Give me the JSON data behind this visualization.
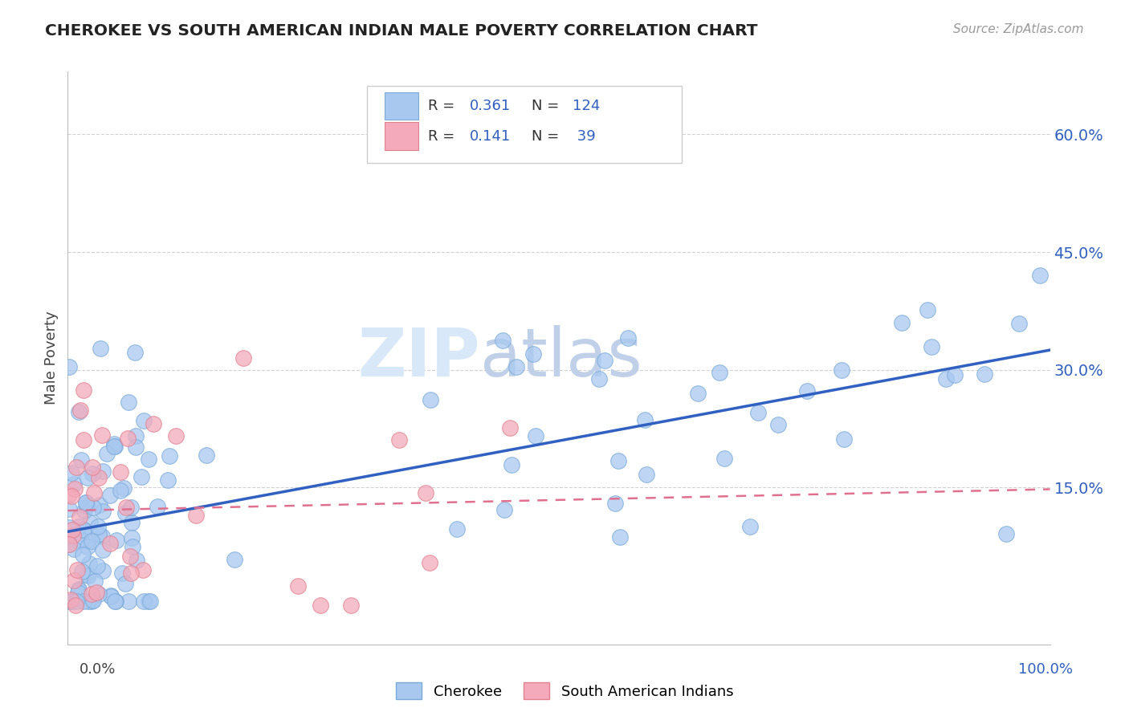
{
  "title": "CHEROKEE VS SOUTH AMERICAN INDIAN MALE POVERTY CORRELATION CHART",
  "source": "Source: ZipAtlas.com",
  "ylabel": "Male Poverty",
  "xlim": [
    0,
    1.0
  ],
  "ylim": [
    -0.05,
    0.68
  ],
  "yticks": [
    0.15,
    0.3,
    0.45,
    0.6
  ],
  "ytick_labels": [
    "15.0%",
    "30.0%",
    "45.0%",
    "60.0%"
  ],
  "cherokee_color": "#A8C8F0",
  "sai_color": "#F4AABB",
  "cherokee_edge": "#7AAAD8",
  "sai_edge": "#E08090",
  "line_cherokee": "#3060C0",
  "line_sai": "#E07090",
  "background_color": "#FFFFFF",
  "grid_color": "#CCCCCC",
  "watermark_color": "#D8E8F8",
  "cherokee_r": 0.361,
  "cherokee_n": 124,
  "sai_r": 0.141,
  "sai_n": 39
}
